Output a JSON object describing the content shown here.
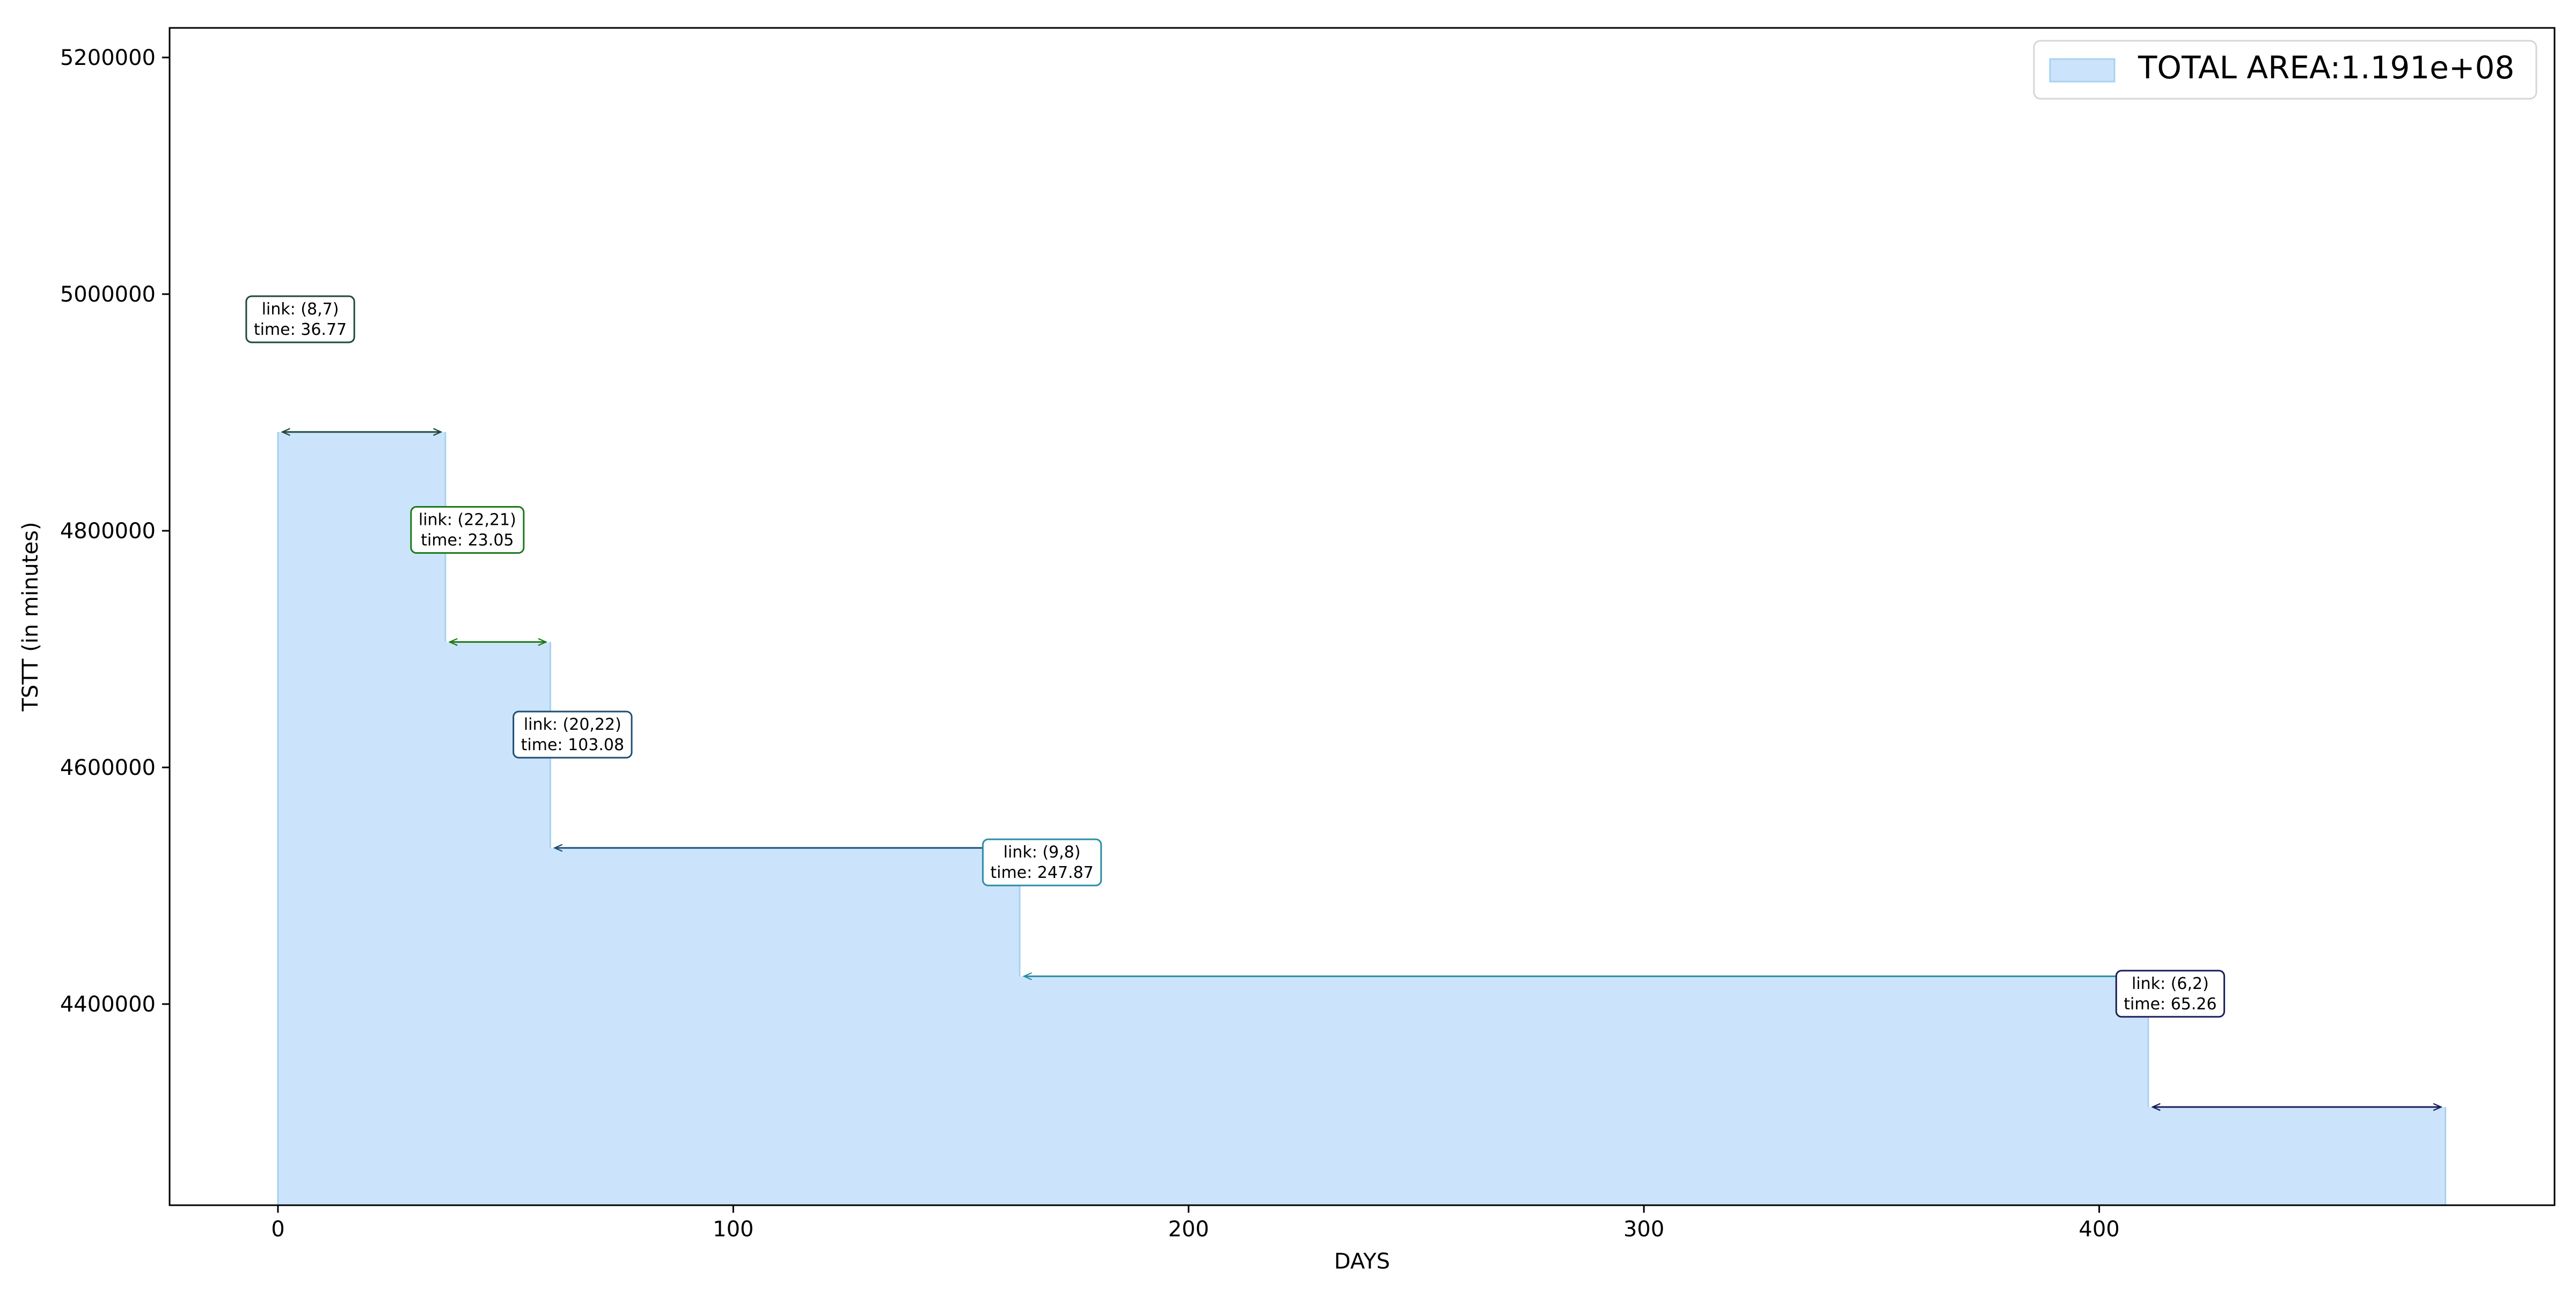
{
  "chart_data": {
    "type": "area",
    "title": "",
    "xlabel": "DAYS",
    "ylabel": "TSTT (in minutes)",
    "xlim": [
      -23.8,
      500.0
    ],
    "ylim": [
      4230000,
      5225000
    ],
    "xticks": [
      0,
      100,
      200,
      300,
      400
    ],
    "yticks": [
      4400000,
      4600000,
      4800000,
      5000000,
      5200000
    ],
    "grid": false,
    "legend": {
      "position": "top-right",
      "label": "TOTAL AREA:1.191e+08",
      "color": "#cce4fb",
      "edge_color": "#a7d1f2"
    },
    "fill_color": "#cce4fb",
    "edge_color": "#a7d1f2",
    "steps": [
      {
        "x_start": 0.0,
        "x_end": 36.77,
        "y": 4883500
      },
      {
        "x_start": 36.77,
        "x_end": 59.82,
        "y": 4706000
      },
      {
        "x_start": 59.82,
        "x_end": 162.9,
        "y": 4532000
      },
      {
        "x_start": 162.9,
        "x_end": 410.77,
        "y": 4423500
      },
      {
        "x_start": 410.77,
        "x_end": 476.03,
        "y": 4313000
      }
    ],
    "annotations": [
      {
        "link": "link: (8,7)",
        "time": "time: 36.77",
        "color": "#1d4a3a",
        "arrow_y": 4883500,
        "x_from": 0.0,
        "x_to": 36.77,
        "box_x": 4.9,
        "box_y": 4981000
      },
      {
        "link": "link: (22,21)",
        "time": "time: 23.05",
        "color": "#1b7a1b",
        "arrow_y": 4706000,
        "x_from": 36.77,
        "x_to": 59.82,
        "box_x": 41.6,
        "box_y": 4803000
      },
      {
        "link": "link: (20,22)",
        "time": "time: 103.08",
        "color": "#1e4e76",
        "arrow_y": 4532000,
        "x_from": 59.82,
        "x_to": 162.9,
        "box_x": 64.7,
        "box_y": 4630000
      },
      {
        "link": "link: (9,8)",
        "time": "time: 247.87",
        "color": "#2a8ea6",
        "arrow_y": 4423500,
        "x_from": 162.9,
        "x_to": 410.77,
        "box_x": 167.8,
        "box_y": 4522000
      },
      {
        "link": "link: (6,2)",
        "time": "time: 65.26",
        "color": "#1a1e5a",
        "arrow_y": 4313000,
        "x_from": 410.77,
        "x_to": 476.03,
        "box_x": 415.6,
        "box_y": 4411000
      }
    ]
  }
}
